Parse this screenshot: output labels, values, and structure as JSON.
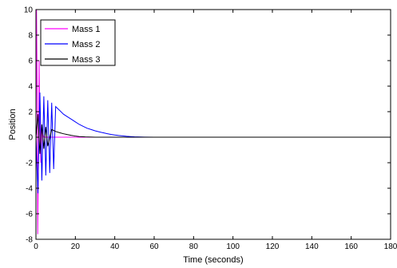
{
  "chart_data": {
    "type": "line",
    "title": "",
    "xlabel": "Time (seconds)",
    "ylabel": "Position",
    "xlim": [
      0,
      180
    ],
    "ylim": [
      -8,
      10
    ],
    "xticks": [
      0,
      20,
      40,
      60,
      80,
      100,
      120,
      140,
      160,
      180
    ],
    "yticks": [
      -8,
      -6,
      -4,
      -2,
      0,
      2,
      4,
      6,
      8,
      10
    ],
    "grid": false,
    "legend_position": "top-left",
    "series": [
      {
        "name": "Mass 1",
        "color": "#ff00ff",
        "description": "brief large-amplitude spike near t=0 (up to about 10, down to about -7.6), then flat at 0",
        "x": [
          0,
          0.3,
          0.6,
          0.9,
          1.2,
          1.6,
          2.0,
          2.5,
          3.0,
          4.0,
          6.0,
          180
        ],
        "y": [
          0,
          10,
          4,
          -7.6,
          -3,
          6,
          1,
          -2,
          0.5,
          0,
          0,
          0
        ]
      },
      {
        "name": "Mass 2",
        "color": "#0000ff",
        "description": "damped oscillation, period about 2 s, amplitude about 4.5 at start decaying to near 0 by t~55",
        "x": [
          0,
          1,
          2,
          3,
          4,
          5,
          6,
          7,
          8,
          9,
          10,
          12,
          14,
          16,
          18,
          20,
          22,
          24,
          26,
          28,
          30,
          32,
          34,
          36,
          38,
          40,
          42,
          44,
          46,
          48,
          50,
          55,
          60,
          180
        ],
        "y": [
          0,
          -4.4,
          3.5,
          -3.4,
          3.2,
          -3.0,
          2.9,
          -2.8,
          2.7,
          -2.5,
          2.4,
          2.1,
          1.8,
          1.6,
          1.4,
          1.2,
          1.0,
          0.85,
          0.7,
          0.6,
          0.5,
          0.42,
          0.35,
          0.28,
          0.22,
          0.17,
          0.13,
          0.1,
          0.07,
          0.05,
          0.03,
          0.01,
          0,
          0
        ]
      },
      {
        "name": "Mass 3",
        "color": "#000000",
        "description": "small damped oscillation, amplitude about 2 near start decaying to 0 by t~25",
        "x": [
          0,
          1,
          2,
          3,
          4,
          5,
          6,
          8,
          10,
          12,
          14,
          16,
          18,
          20,
          22,
          25,
          30,
          180
        ],
        "y": [
          0,
          1.8,
          -1.3,
          1.0,
          -0.9,
          0.8,
          -0.7,
          0.6,
          0.45,
          0.35,
          0.27,
          0.2,
          0.14,
          0.09,
          0.05,
          0.02,
          0,
          0
        ]
      }
    ]
  }
}
